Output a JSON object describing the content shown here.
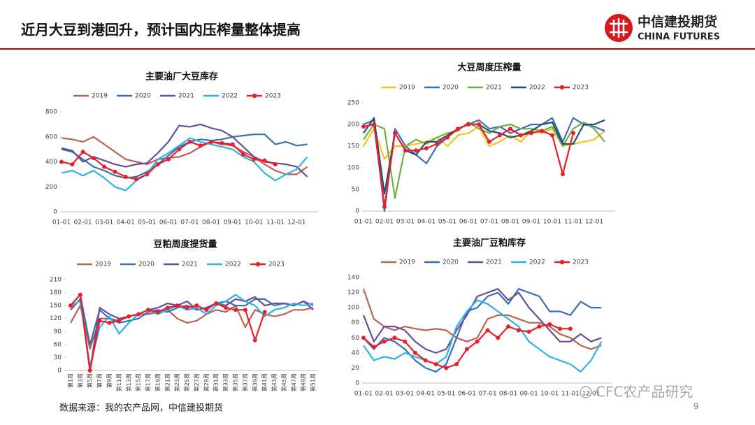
{
  "header": {
    "title": "近月大豆到港回升，预计国内压榨量整体提高",
    "logo_cn": "中信建投期货",
    "logo_en": "CHINA FUTURES"
  },
  "chart_data": [
    {
      "type": "line",
      "title": "主要油厂大豆库存",
      "categories": [
        "01-01",
        null,
        "02-01",
        null,
        "03-01",
        null,
        "04-01",
        null,
        "05-01",
        null,
        "06-01",
        null,
        "07-01",
        null,
        "08-01",
        null,
        "09-01",
        null,
        "10-01",
        null,
        "11-01",
        null,
        "12-01",
        null
      ],
      "ylim": [
        0,
        800
      ],
      "yticks": [
        0,
        200,
        400,
        600,
        800
      ],
      "series": [
        {
          "name": "2019",
          "color": "#c0614f",
          "values": [
            590,
            580,
            560,
            600,
            540,
            480,
            420,
            400,
            380,
            420,
            430,
            440,
            470,
            520,
            560,
            540,
            530,
            480,
            440,
            380,
            330,
            300,
            300,
            360
          ]
        },
        {
          "name": "2020",
          "color": "#3a6fb5",
          "values": [
            500,
            480,
            420,
            360,
            330,
            290,
            270,
            280,
            320,
            380,
            450,
            520,
            560,
            580,
            570,
            580,
            600,
            610,
            620,
            620,
            540,
            560,
            530,
            540
          ]
        },
        {
          "name": "2021",
          "color": "#6b4c9a",
          "values": [
            510,
            490,
            400,
            440,
            410,
            380,
            360,
            380,
            390,
            470,
            560,
            690,
            680,
            700,
            670,
            650,
            600,
            520,
            440,
            400,
            390,
            380,
            360,
            280
          ]
        },
        {
          "name": "2022",
          "color": "#2bb3e6",
          "values": [
            310,
            330,
            290,
            330,
            270,
            200,
            170,
            250,
            300,
            420,
            470,
            530,
            590,
            560,
            540,
            520,
            500,
            440,
            400,
            310,
            250,
            300,
            340,
            440
          ]
        },
        {
          "name": "2023",
          "color": "#e8202a",
          "marker": "circle",
          "values": [
            400,
            380,
            480,
            430,
            360,
            320,
            280,
            260,
            300,
            380,
            420,
            500,
            560,
            530,
            560,
            550,
            540,
            460,
            420,
            410,
            380,
            null,
            null,
            null
          ]
        }
      ]
    },
    {
      "type": "line",
      "title": "大豆周度压榨量",
      "categories": [
        "01-01",
        null,
        "02-01",
        null,
        "03-01",
        null,
        "04-01",
        null,
        "05-01",
        null,
        "06-01",
        null,
        "07-01",
        null,
        "08-01",
        null,
        "09-01",
        null,
        "10-01",
        null,
        "11-01",
        null,
        "12-01",
        null
      ],
      "ylim": [
        0,
        250
      ],
      "yticks": [
        0,
        50,
        100,
        150,
        200,
        250
      ],
      "series": [
        {
          "name": "2019",
          "color": "#f5c11b",
          "values": [
            150,
            190,
            120,
            150,
            150,
            155,
            160,
            170,
            150,
            175,
            180,
            195,
            150,
            160,
            175,
            160,
            185,
            180,
            190,
            150,
            155,
            160,
            165,
            185
          ]
        },
        {
          "name": "2020",
          "color": "#3a6fb5",
          "values": [
            200,
            210,
            0,
            190,
            150,
            130,
            110,
            150,
            170,
            190,
            200,
            210,
            190,
            195,
            180,
            190,
            200,
            200,
            215,
            160,
            215,
            200,
            195,
            185
          ]
        },
        {
          "name": "2021",
          "color": "#72ad47",
          "values": [
            165,
            200,
            190,
            30,
            150,
            165,
            155,
            170,
            180,
            185,
            205,
            190,
            180,
            195,
            200,
            190,
            190,
            185,
            195,
            150,
            190,
            205,
            190,
            160
          ]
        },
        {
          "name": "2022",
          "color": "#1f4e79",
          "values": [
            180,
            215,
            40,
            180,
            140,
            130,
            160,
            160,
            175,
            190,
            200,
            200,
            185,
            180,
            170,
            175,
            185,
            200,
            205,
            155,
            155,
            200,
            200,
            210
          ]
        },
        {
          "name": "2023",
          "color": "#e8202a",
          "marker": "circle",
          "values": [
            195,
            200,
            10,
            180,
            140,
            140,
            145,
            155,
            170,
            190,
            200,
            200,
            160,
            175,
            190,
            175,
            180,
            185,
            175,
            85,
            180,
            null,
            null,
            null
          ]
        }
      ]
    },
    {
      "type": "line",
      "title": "豆粕周度提货量",
      "categories": [
        "第1周",
        "第3周",
        "第5周",
        "第7周",
        "第9周",
        "第11周",
        "第13周",
        "第15周",
        "第17周",
        "第19周",
        "第21周",
        "第23周",
        "第25周",
        "第27周",
        "第29周",
        "第31周",
        "第33周",
        "第35周",
        "第37周",
        "第39周",
        "第41周",
        "第43周",
        "第45周",
        "第47周",
        "第49周",
        "第51周"
      ],
      "ylim": [
        0,
        210
      ],
      "yticks": [
        0,
        30,
        60,
        90,
        120,
        150,
        180,
        210
      ],
      "series": [
        {
          "name": "2019",
          "color": "#c0614f",
          "values": [
            110,
            150,
            50,
            120,
            120,
            115,
            125,
            130,
            130,
            135,
            140,
            120,
            110,
            115,
            130,
            140,
            135,
            150,
            100,
            140,
            130,
            125,
            130,
            140,
            140,
            145
          ]
        },
        {
          "name": "2020",
          "color": "#3a6fb5",
          "values": [
            150,
            175,
            60,
            140,
            120,
            110,
            115,
            120,
            135,
            140,
            135,
            145,
            150,
            140,
            145,
            155,
            160,
            150,
            150,
            165,
            165,
            150,
            155,
            150,
            160,
            150
          ]
        },
        {
          "name": "2021",
          "color": "#6b4c9a",
          "values": [
            140,
            165,
            0,
            145,
            130,
            120,
            125,
            130,
            140,
            145,
            155,
            150,
            160,
            140,
            145,
            155,
            150,
            165,
            160,
            170,
            150,
            155,
            155,
            150,
            160,
            140
          ]
        },
        {
          "name": "2022",
          "color": "#2bb3e6",
          "values": [
            150,
            160,
            10,
            100,
            125,
            85,
            110,
            130,
            140,
            130,
            140,
            150,
            140,
            145,
            130,
            150,
            160,
            175,
            160,
            150,
            125,
            140,
            145,
            155,
            150,
            155
          ]
        },
        {
          "name": "2023",
          "color": "#e8202a",
          "marker": "circle",
          "values": [
            150,
            175,
            0,
            115,
            110,
            115,
            125,
            130,
            140,
            135,
            145,
            150,
            145,
            150,
            140,
            155,
            145,
            140,
            140,
            70,
            135,
            null,
            null,
            null,
            null,
            null
          ]
        }
      ]
    },
    {
      "type": "line",
      "title": "主要油厂豆粕库存",
      "categories": [
        "01-01",
        null,
        "02-01",
        null,
        "03-01",
        null,
        "04-01",
        null,
        "05-01",
        null,
        "06-01",
        null,
        "07-01",
        null,
        "08-01",
        null,
        "09-01",
        null,
        "10-01",
        null,
        "11-01",
        null,
        "12-01",
        null
      ],
      "ylim": [
        0,
        140
      ],
      "yticks": [
        0,
        20,
        40,
        60,
        80,
        100,
        120,
        140
      ],
      "series": [
        {
          "name": "2019",
          "color": "#c0614f",
          "values": [
            125,
            85,
            75,
            70,
            75,
            72,
            70,
            72,
            70,
            60,
            55,
            60,
            85,
            90,
            90,
            85,
            80,
            80,
            75,
            65,
            60,
            50,
            45,
            50
          ]
        },
        {
          "name": "2020",
          "color": "#3a6fb5",
          "values": [
            60,
            45,
            60,
            55,
            45,
            30,
            20,
            15,
            25,
            60,
            95,
            100,
            115,
            120,
            105,
            125,
            120,
            115,
            95,
            95,
            90,
            108,
            100,
            100
          ]
        },
        {
          "name": "2021",
          "color": "#6b4c9a",
          "values": [
            90,
            55,
            75,
            75,
            70,
            55,
            45,
            40,
            45,
            70,
            90,
            115,
            120,
            125,
            110,
            120,
            100,
            85,
            70,
            55,
            55,
            65,
            55,
            60
          ]
        },
        {
          "name": "2022",
          "color": "#2bb3e6",
          "values": [
            50,
            30,
            35,
            32,
            40,
            35,
            30,
            25,
            35,
            75,
            95,
            110,
            105,
            95,
            85,
            75,
            55,
            45,
            35,
            30,
            25,
            15,
            30,
            55
          ]
        },
        {
          "name": "2023",
          "color": "#e8202a",
          "marker": "circle",
          "values": [
            60,
            48,
            55,
            60,
            55,
            40,
            30,
            25,
            20,
            25,
            45,
            55,
            70,
            60,
            75,
            70,
            68,
            75,
            78,
            72,
            72,
            null,
            null,
            null
          ]
        }
      ]
    }
  ],
  "footer": {
    "source": "数据来源：我的农产品网，中信建投期货",
    "page": "9",
    "watermark": "CFC农产品研究"
  }
}
